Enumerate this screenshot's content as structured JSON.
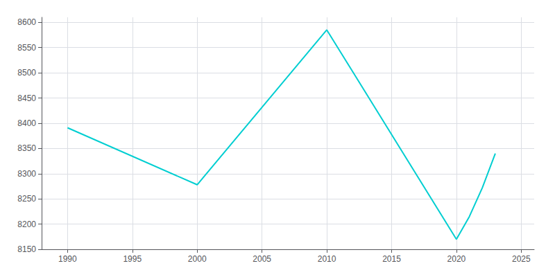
{
  "chart_data": {
    "type": "line",
    "x": [
      1990,
      2000,
      2010,
      2020,
      2021,
      2022,
      2023
    ],
    "values": [
      8391,
      8278,
      8585,
      8170,
      8215,
      8272,
      8340
    ],
    "color": "#00CED1",
    "xlim": [
      1988,
      2026
    ],
    "ylim": [
      8150,
      8610
    ],
    "xticks": [
      1990,
      1995,
      2000,
      2005,
      2010,
      2015,
      2020,
      2025
    ],
    "yticks": [
      8150,
      8200,
      8250,
      8300,
      8350,
      8400,
      8450,
      8500,
      8550,
      8600
    ],
    "grid": true
  }
}
